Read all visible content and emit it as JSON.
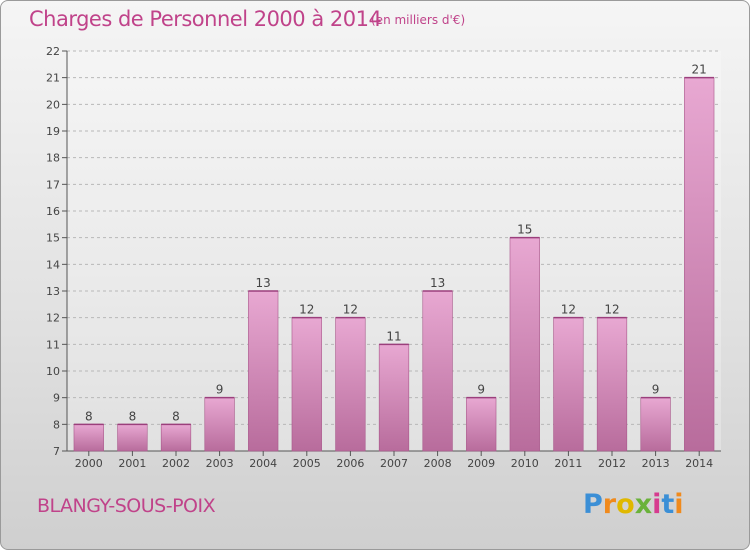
{
  "header": {
    "title": "Charges de Personnel 2000 à 2014",
    "subtitle": "(en milliers d'€)"
  },
  "footer": {
    "commune": "BLANGY-SOUS-POIX",
    "logo_letters": [
      {
        "ch": "P",
        "color": "#3b8fd6"
      },
      {
        "ch": "r",
        "color": "#f08a1c"
      },
      {
        "ch": "o",
        "color": "#e0b800"
      },
      {
        "ch": "x",
        "color": "#6ab23a"
      },
      {
        "ch": "i",
        "color": "#d63b8f"
      },
      {
        "ch": "t",
        "color": "#3b8fd6"
      },
      {
        "ch": "i",
        "color": "#f08a1c"
      }
    ]
  },
  "colors": {
    "bar_top": "#e8a8d2",
    "bar_bottom": "#b86c9c",
    "label": "#444444",
    "grid": "#b8b8b8"
  },
  "chart_data": {
    "type": "bar",
    "categories": [
      "2000",
      "2001",
      "2002",
      "2003",
      "2004",
      "2005",
      "2006",
      "2007",
      "2008",
      "2009",
      "2010",
      "2011",
      "2012",
      "2013",
      "2014"
    ],
    "values": [
      8,
      8,
      8,
      9,
      13,
      12,
      12,
      11,
      13,
      9,
      15,
      12,
      12,
      9,
      21
    ],
    "ylim": [
      7,
      22
    ],
    "yticks": [
      7,
      8,
      9,
      10,
      11,
      12,
      13,
      14,
      15,
      16,
      17,
      18,
      19,
      20,
      21,
      22
    ],
    "data_labels": true,
    "grid": true
  }
}
